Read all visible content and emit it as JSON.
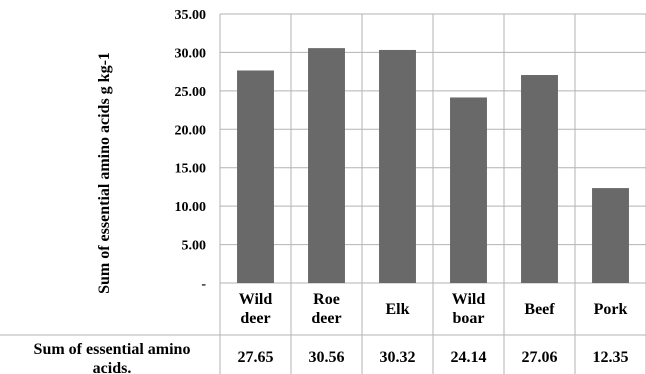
{
  "chart_data": {
    "type": "bar",
    "title": "",
    "xlabel": "",
    "ylabel": "Sum of essential amino acids g kg-1",
    "ylim": [
      0,
      35
    ],
    "yticks": [
      "-",
      "5.00",
      "10.00",
      "15.00",
      "20.00",
      "25.00",
      "30.00",
      "35.00"
    ],
    "grid": true,
    "categories": [
      [
        "Wild",
        "deer"
      ],
      [
        "Roe",
        "deer"
      ],
      [
        "Elk"
      ],
      [
        "Wild",
        "boar"
      ],
      [
        "Beef"
      ],
      [
        "Pork"
      ]
    ],
    "series": [
      {
        "name": "Sum of essential amino acids.",
        "values": [
          27.65,
          30.56,
          30.32,
          24.14,
          27.06,
          12.35
        ],
        "value_labels": [
          "27.65",
          "30.56",
          "30.32",
          "24.14",
          "27.06",
          "12.35"
        ],
        "color": "#696969"
      }
    ],
    "data_table": {
      "row_label_lines": [
        "Sum of essential amino",
        "acids."
      ]
    }
  }
}
